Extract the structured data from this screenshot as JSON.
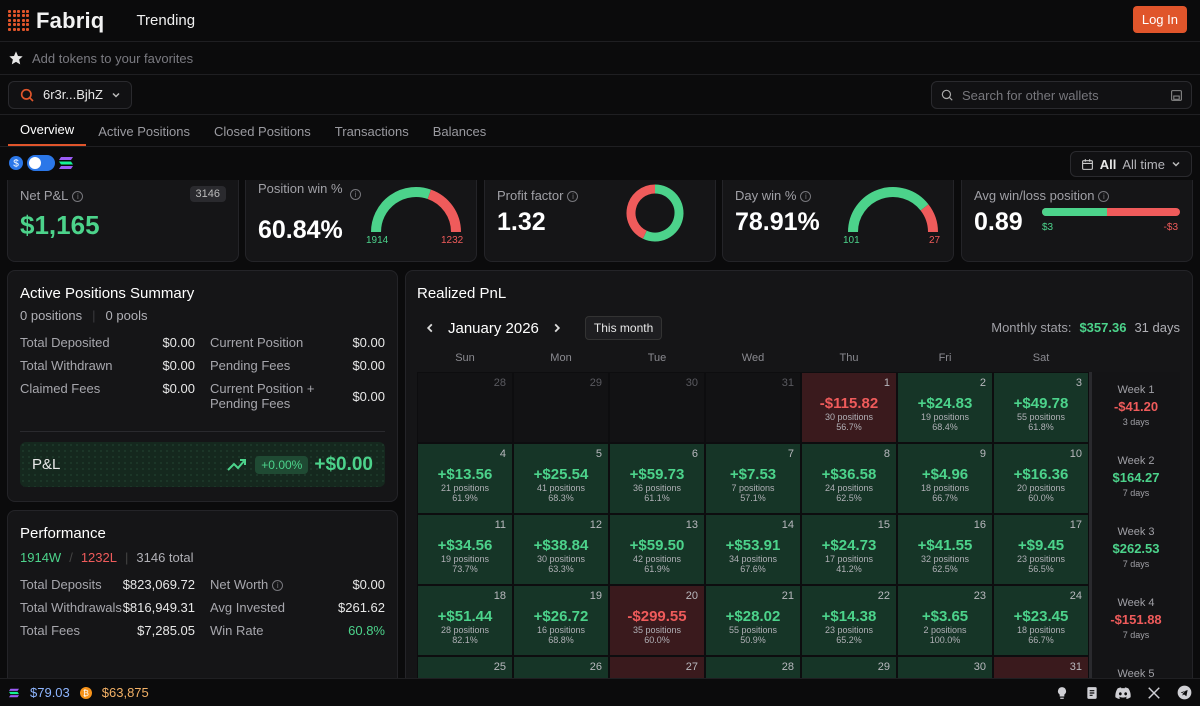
{
  "header": {
    "logo": "Fabriq",
    "nav": "Trending",
    "login": "Log In"
  },
  "favorites": {
    "placeholder": "Add tokens to your favorites"
  },
  "wallet": {
    "address": "6r3r...BjhZ",
    "search_placeholder": "Search for other wallets"
  },
  "tabs": [
    "Overview",
    "Active Positions",
    "Closed Positions",
    "Transactions",
    "Balances"
  ],
  "timefilter": {
    "scope": "All",
    "range": "All time"
  },
  "stats": {
    "netpnl": {
      "label": "Net P&L",
      "badge": "3146",
      "value": "$1,165"
    },
    "poswin": {
      "label": "Position win %",
      "value": "60.84%",
      "win": "1914",
      "loss": "1232",
      "win_frac": 0.6084
    },
    "profit": {
      "label": "Profit factor",
      "value": "1.32",
      "frac": 0.57
    },
    "daywin": {
      "label": "Day win %",
      "value": "78.91%",
      "win": "101",
      "loss": "27",
      "win_frac": 0.7891
    },
    "avgwl": {
      "label": "Avg win/loss position",
      "value": "0.89",
      "win": "$3",
      "loss": "-$3",
      "frac": 0.47
    }
  },
  "summary": {
    "title": "Active Positions Summary",
    "positions": "0 positions",
    "pools": "0 pools",
    "rows": [
      {
        "l1": "Total Deposited",
        "v1": "$0.00",
        "l2": "Current Position",
        "v2": "$0.00"
      },
      {
        "l1": "Total Withdrawn",
        "v1": "$0.00",
        "l2": "Pending Fees",
        "v2": "$0.00"
      },
      {
        "l1": "Claimed Fees",
        "v1": "$0.00",
        "l2": "Current Position + Pending Fees",
        "v2": "$0.00"
      }
    ],
    "pnl_label": "P&L",
    "pnl_pct": "+0.00%",
    "pnl_val": "+$0.00"
  },
  "performance": {
    "title": "Performance",
    "wins": "1914W",
    "losses": "1232L",
    "total": "3146 total",
    "rows": [
      {
        "l1": "Total Deposits",
        "v1": "$823,069.72",
        "l2": "Net Worth",
        "v2": "$0.00"
      },
      {
        "l1": "Total Withdrawals",
        "v1": "$816,949.31",
        "l2": "Avg Invested",
        "v2": "$261.62"
      },
      {
        "l1": "Total Fees",
        "v1": "$7,285.05",
        "l2": "Win Rate",
        "v2": "60.8%"
      }
    ]
  },
  "realized": {
    "title": "Realized PnL",
    "month": "January 2026",
    "this_month": "This month",
    "monthly_label": "Monthly stats:",
    "monthly_value": "$357.36",
    "monthly_days": "31 days",
    "weekdays": [
      "Sun",
      "Mon",
      "Tue",
      "Wed",
      "Thu",
      "Fri",
      "Sat"
    ],
    "cells": [
      {
        "d": "28",
        "t": "e"
      },
      {
        "d": "29",
        "t": "e"
      },
      {
        "d": "30",
        "t": "e"
      },
      {
        "d": "31",
        "t": "e"
      },
      {
        "d": "1",
        "t": "r",
        "a": "-$115.82",
        "p": "30 positions",
        "c": "56.7%"
      },
      {
        "d": "2",
        "t": "g",
        "a": "+$24.83",
        "p": "19 positions",
        "c": "68.4%"
      },
      {
        "d": "3",
        "t": "g",
        "a": "+$49.78",
        "p": "55 positions",
        "c": "61.8%"
      },
      {
        "d": "4",
        "t": "g",
        "a": "+$13.56",
        "p": "21 positions",
        "c": "61.9%"
      },
      {
        "d": "5",
        "t": "g",
        "a": "+$25.54",
        "p": "41 positions",
        "c": "68.3%"
      },
      {
        "d": "6",
        "t": "g",
        "a": "+$59.73",
        "p": "36 positions",
        "c": "61.1%"
      },
      {
        "d": "7",
        "t": "g",
        "a": "+$7.53",
        "p": "7 positions",
        "c": "57.1%"
      },
      {
        "d": "8",
        "t": "g",
        "a": "+$36.58",
        "p": "24 positions",
        "c": "62.5%"
      },
      {
        "d": "9",
        "t": "g",
        "a": "+$4.96",
        "p": "18 positions",
        "c": "66.7%"
      },
      {
        "d": "10",
        "t": "g",
        "a": "+$16.36",
        "p": "20 positions",
        "c": "60.0%"
      },
      {
        "d": "11",
        "t": "g",
        "a": "+$34.56",
        "p": "19 positions",
        "c": "73.7%"
      },
      {
        "d": "12",
        "t": "g",
        "a": "+$38.84",
        "p": "30 positions",
        "c": "63.3%"
      },
      {
        "d": "13",
        "t": "g",
        "a": "+$59.50",
        "p": "42 positions",
        "c": "61.9%"
      },
      {
        "d": "14",
        "t": "g",
        "a": "+$53.91",
        "p": "34 positions",
        "c": "67.6%"
      },
      {
        "d": "15",
        "t": "g",
        "a": "+$24.73",
        "p": "17 positions",
        "c": "41.2%"
      },
      {
        "d": "16",
        "t": "g",
        "a": "+$41.55",
        "p": "32 positions",
        "c": "62.5%"
      },
      {
        "d": "17",
        "t": "g",
        "a": "+$9.45",
        "p": "23 positions",
        "c": "56.5%"
      },
      {
        "d": "18",
        "t": "g",
        "a": "+$51.44",
        "p": "28 positions",
        "c": "82.1%"
      },
      {
        "d": "19",
        "t": "g",
        "a": "+$26.72",
        "p": "16 positions",
        "c": "68.8%"
      },
      {
        "d": "20",
        "t": "r",
        "a": "-$299.55",
        "p": "35 positions",
        "c": "60.0%"
      },
      {
        "d": "21",
        "t": "g",
        "a": "+$28.02",
        "p": "55 positions",
        "c": "50.9%"
      },
      {
        "d": "22",
        "t": "g",
        "a": "+$14.38",
        "p": "23 positions",
        "c": "65.2%"
      },
      {
        "d": "23",
        "t": "g",
        "a": "+$3.65",
        "p": "2 positions",
        "c": "100.0%"
      },
      {
        "d": "24",
        "t": "g",
        "a": "+$23.45",
        "p": "18 positions",
        "c": "66.7%"
      },
      {
        "d": "25",
        "t": "g"
      },
      {
        "d": "26",
        "t": "g"
      },
      {
        "d": "27",
        "t": "r"
      },
      {
        "d": "28",
        "t": "g"
      },
      {
        "d": "29",
        "t": "g"
      },
      {
        "d": "30",
        "t": "g"
      },
      {
        "d": "31",
        "t": "r"
      }
    ],
    "weeks": [
      {
        "t": "Week 1",
        "v": "-$41.20",
        "s": "3 days",
        "neg": true
      },
      {
        "t": "Week 2",
        "v": "$164.27",
        "s": "7 days",
        "neg": false
      },
      {
        "t": "Week 3",
        "v": "$262.53",
        "s": "7 days",
        "neg": false
      },
      {
        "t": "Week 4",
        "v": "-$151.88",
        "s": "7 days",
        "neg": true
      },
      {
        "t": "Week 5",
        "v": "",
        "s": "",
        "neg": false
      }
    ]
  },
  "footer": {
    "sol": "$79.03",
    "btc": "$63,875"
  },
  "colors": {
    "accent": "#e0552b",
    "green": "#4cd38b",
    "red": "#ef5b5b"
  }
}
